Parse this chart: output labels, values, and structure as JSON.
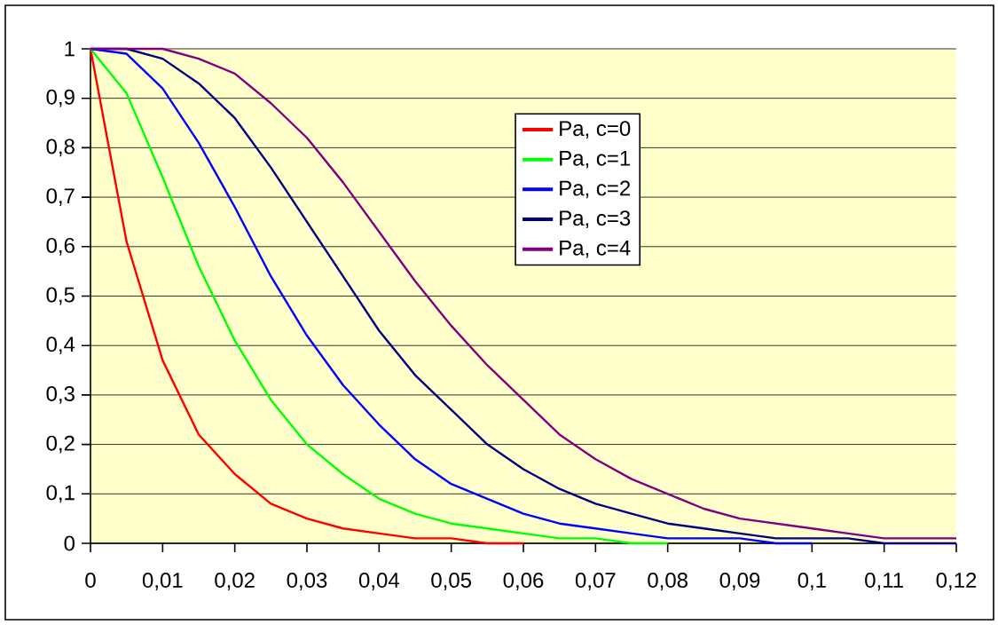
{
  "chart_data": {
    "type": "line",
    "x": [
      0,
      0.005,
      0.01,
      0.015,
      0.02,
      0.025,
      0.03,
      0.035,
      0.04,
      0.045,
      0.05,
      0.055,
      0.06,
      0.065,
      0.07,
      0.075,
      0.08,
      0.085,
      0.09,
      0.095,
      0.1,
      0.105,
      0.11,
      0.115,
      0.12
    ],
    "series": [
      {
        "name": "Pa, c=0",
        "color": "#ff0000",
        "values": [
          1,
          0.61,
          0.37,
          0.22,
          0.14,
          0.08,
          0.05,
          0.03,
          0.02,
          0.01,
          0.01,
          0,
          0,
          null,
          null,
          null,
          null,
          null,
          null,
          null,
          null,
          null,
          null,
          null,
          null
        ]
      },
      {
        "name": "Pa, c=1",
        "color": "#00ff00",
        "values": [
          1,
          0.91,
          0.74,
          0.56,
          0.41,
          0.29,
          0.2,
          0.14,
          0.09,
          0.06,
          0.04,
          0.03,
          0.02,
          0.01,
          0.01,
          0,
          0,
          null,
          null,
          null,
          null,
          null,
          null,
          null,
          null
        ]
      },
      {
        "name": "Pa, c=2",
        "color": "#0000ff",
        "values": [
          1,
          0.99,
          0.92,
          0.81,
          0.68,
          0.54,
          0.42,
          0.32,
          0.24,
          0.17,
          0.12,
          0.09,
          0.06,
          0.04,
          0.03,
          0.02,
          0.01,
          0.01,
          0.01,
          0,
          0,
          null,
          null,
          null,
          null
        ]
      },
      {
        "name": "Pa, c=3",
        "color": "#000080",
        "values": [
          1,
          1,
          0.98,
          0.93,
          0.86,
          0.76,
          0.65,
          0.54,
          0.43,
          0.34,
          0.27,
          0.2,
          0.15,
          0.11,
          0.08,
          0.06,
          0.04,
          0.03,
          0.02,
          0.01,
          0.01,
          0.01,
          0,
          0,
          0
        ]
      },
      {
        "name": "Pa, c=4",
        "color": "#800080",
        "values": [
          1,
          1,
          1,
          0.98,
          0.95,
          0.89,
          0.82,
          0.73,
          0.63,
          0.53,
          0.44,
          0.36,
          0.29,
          0.22,
          0.17,
          0.13,
          0.1,
          0.07,
          0.05,
          0.04,
          0.03,
          0.02,
          0.01,
          0.01,
          0.01
        ]
      }
    ],
    "xlim": [
      0,
      0.12
    ],
    "xticks": [
      0,
      {
        "value": 0.01,
        "label": "0,01"
      },
      {
        "value": 0.02,
        "label": "0,02"
      },
      {
        "value": 0.03,
        "label": "0,03"
      },
      {
        "value": 0.04,
        "label": "0,04"
      },
      {
        "value": 0.05,
        "label": "0,05"
      },
      {
        "value": 0.06,
        "label": "0,06"
      },
      {
        "value": 0.07,
        "label": "0,07"
      },
      {
        "value": 0.08,
        "label": "0,08"
      },
      {
        "value": 0.09,
        "label": "0,09"
      },
      {
        "value": 0.1,
        "label": "0,1"
      },
      {
        "value": 0.11,
        "label": "0,11"
      },
      {
        "value": 0.12,
        "label": "0,12"
      }
    ],
    "ylim": [
      0,
      1
    ],
    "yticks": [
      0,
      {
        "value": 0.1,
        "label": "0,1"
      },
      {
        "value": 0.2,
        "label": "0,2"
      },
      {
        "value": 0.3,
        "label": "0,3"
      },
      {
        "value": 0.4,
        "label": "0,4"
      },
      {
        "value": 0.5,
        "label": "0,5"
      },
      {
        "value": 0.6,
        "label": "0,6"
      },
      {
        "value": 0.7,
        "label": "0,7"
      },
      {
        "value": 0.8,
        "label": "0,8"
      },
      {
        "value": 0.9,
        "label": "0,9"
      },
      1
    ],
    "grid": "y",
    "legend": "top",
    "marker": "none",
    "line_style": "solid"
  }
}
